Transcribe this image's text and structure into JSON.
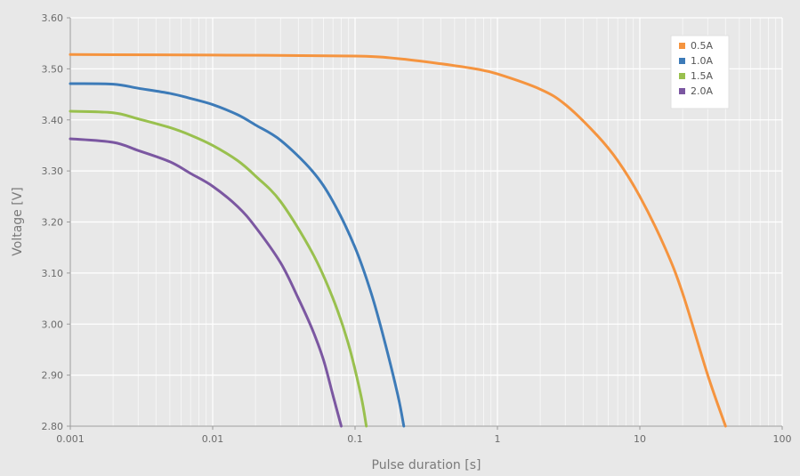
{
  "chart_data": {
    "type": "line",
    "xscale": "log",
    "xlabel": "Pulse duration [s]",
    "ylabel": "Voltage [V]",
    "xlim": [
      0.001,
      100
    ],
    "ylim": [
      2.8,
      3.6
    ],
    "x_ticks": [
      {
        "value": 0.001,
        "label": "0.001"
      },
      {
        "value": 0.01,
        "label": "0.01"
      },
      {
        "value": 0.1,
        "label": "0.1"
      },
      {
        "value": 1,
        "label": "1"
      },
      {
        "value": 10,
        "label": "10"
      },
      {
        "value": 100,
        "label": "100"
      }
    ],
    "y_ticks": [
      {
        "value": 2.8,
        "label": "2.80"
      },
      {
        "value": 2.9,
        "label": "2.90"
      },
      {
        "value": 3.0,
        "label": "3.00"
      },
      {
        "value": 3.1,
        "label": "3.10"
      },
      {
        "value": 3.2,
        "label": "3.20"
      },
      {
        "value": 3.3,
        "label": "3.30"
      },
      {
        "value": 3.4,
        "label": "3.40"
      },
      {
        "value": 3.5,
        "label": "3.50"
      },
      {
        "value": 3.6,
        "label": "3.60"
      }
    ],
    "grid": true,
    "legend_position": "top-right",
    "series": [
      {
        "name": "0.5A",
        "color": "#f5943f",
        "points": [
          [
            0.001,
            3.528
          ],
          [
            0.01,
            3.527
          ],
          [
            0.1,
            3.525
          ],
          [
            0.2,
            3.52
          ],
          [
            0.4,
            3.51
          ],
          [
            0.7,
            3.5
          ],
          [
            1,
            3.49
          ],
          [
            2,
            3.46
          ],
          [
            3,
            3.43
          ],
          [
            5,
            3.37
          ],
          [
            7,
            3.32
          ],
          [
            10,
            3.25
          ],
          [
            15,
            3.15
          ],
          [
            20,
            3.06
          ],
          [
            30,
            2.9
          ],
          [
            40,
            2.8
          ]
        ]
      },
      {
        "name": "1.0A",
        "color": "#3d7bb8",
        "points": [
          [
            0.001,
            3.471
          ],
          [
            0.002,
            3.47
          ],
          [
            0.003,
            3.462
          ],
          [
            0.005,
            3.452
          ],
          [
            0.007,
            3.442
          ],
          [
            0.01,
            3.43
          ],
          [
            0.015,
            3.41
          ],
          [
            0.02,
            3.39
          ],
          [
            0.03,
            3.36
          ],
          [
            0.05,
            3.3
          ],
          [
            0.07,
            3.24
          ],
          [
            0.1,
            3.15
          ],
          [
            0.13,
            3.06
          ],
          [
            0.16,
            2.97
          ],
          [
            0.2,
            2.86
          ],
          [
            0.22,
            2.8
          ]
        ]
      },
      {
        "name": "1.5A",
        "color": "#99c04e",
        "points": [
          [
            0.001,
            3.417
          ],
          [
            0.002,
            3.414
          ],
          [
            0.003,
            3.402
          ],
          [
            0.005,
            3.385
          ],
          [
            0.007,
            3.37
          ],
          [
            0.01,
            3.35
          ],
          [
            0.015,
            3.32
          ],
          [
            0.02,
            3.29
          ],
          [
            0.03,
            3.24
          ],
          [
            0.05,
            3.14
          ],
          [
            0.07,
            3.05
          ],
          [
            0.09,
            2.96
          ],
          [
            0.11,
            2.86
          ],
          [
            0.12,
            2.8
          ]
        ]
      },
      {
        "name": "2.0A",
        "color": "#7b57a1",
        "points": [
          [
            0.001,
            3.363
          ],
          [
            0.002,
            3.356
          ],
          [
            0.003,
            3.34
          ],
          [
            0.005,
            3.318
          ],
          [
            0.007,
            3.295
          ],
          [
            0.01,
            3.27
          ],
          [
            0.015,
            3.23
          ],
          [
            0.02,
            3.19
          ],
          [
            0.03,
            3.12
          ],
          [
            0.04,
            3.05
          ],
          [
            0.05,
            2.99
          ],
          [
            0.06,
            2.93
          ],
          [
            0.07,
            2.86
          ],
          [
            0.08,
            2.8
          ]
        ]
      }
    ]
  }
}
